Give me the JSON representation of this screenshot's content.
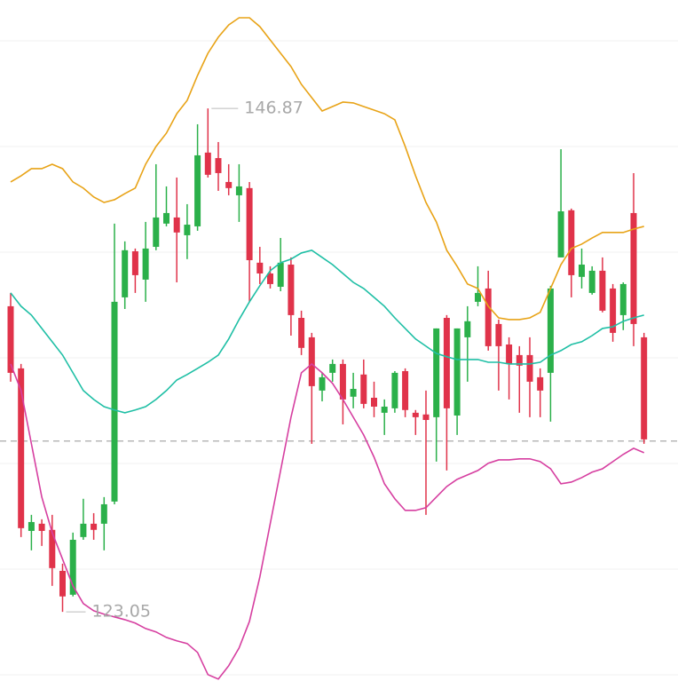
{
  "chart_data": {
    "type": "candlestick",
    "ylim": [
      119.4,
      152
    ],
    "up_color": "#e0334a",
    "down_color": "#2bb04a",
    "hline": 131.13,
    "open": [
      134.36,
      127.01,
      127.3,
      126.88,
      125.12,
      123.78,
      126.46,
      127.22,
      126.93,
      128.14,
      137.72,
      140.16,
      138.98,
      140.24,
      141.71,
      141.92,
      141.0,
      141.37,
      144.65,
      143.73,
      143.81,
      143.1,
      143.18,
      139.69,
      139.06,
      138.56,
      139.57,
      137.09,
      135.54,
      133.73,
      134.15,
      134.78,
      133.1,
      133.6,
      132.89,
      132.76,
      132.76,
      134.36,
      132.6,
      132.26,
      132.13,
      136.46,
      132.68,
      136.46,
      136.8,
      138.14,
      135.62,
      135.62,
      134.78,
      134.7,
      133.94,
      133.52,
      138.35,
      142.0,
      138.98,
      139.48,
      139.19,
      137.3,
      136.25,
      138.56,
      136.67,
      131.21
    ],
    "high": [
      138.14,
      134.78,
      127.64,
      127.43,
      127.64,
      125.33,
      126.8,
      128.4,
      127.72,
      128.48,
      141.42,
      140.58,
      140.24,
      141.5,
      144.23,
      143.18,
      143.6,
      142.34,
      146.12,
      146.87,
      145.28,
      144.23,
      144.23,
      143.39,
      140.32,
      139.4,
      140.74,
      139.82,
      137.3,
      136.25,
      134.36,
      134.99,
      134.99,
      134.36,
      134.99,
      133.94,
      133.1,
      134.44,
      134.57,
      132.6,
      133.52,
      136.46,
      137.09,
      136.46,
      137.51,
      139.4,
      139.19,
      136.88,
      136.04,
      135.62,
      136.04,
      134.57,
      138.48,
      144.94,
      142.13,
      140.24,
      139.4,
      139.82,
      138.56,
      138.64,
      143.81,
      136.25
    ],
    "low": [
      133.94,
      126.59,
      125.96,
      126.17,
      124.28,
      123.05,
      123.78,
      126.46,
      126.46,
      125.96,
      128.14,
      137.38,
      138.14,
      137.72,
      140.16,
      141.29,
      138.64,
      139.74,
      141.08,
      143.6,
      142.97,
      142.76,
      141.5,
      137.72,
      138.56,
      138.35,
      138.22,
      136.12,
      135.2,
      131.0,
      133.01,
      133.94,
      131.92,
      132.68,
      132.68,
      132.26,
      131.42,
      132.47,
      132.26,
      131.42,
      127.64,
      130.16,
      129.74,
      131.42,
      133.94,
      137.51,
      135.41,
      133.52,
      133.1,
      132.47,
      132.26,
      132.26,
      132.05,
      139.82,
      137.93,
      138.35,
      138.06,
      137.22,
      135.83,
      136.38,
      135.62,
      131.0
    ],
    "close": [
      137.51,
      134.57,
      126.88,
      127.22,
      126.93,
      124.99,
      123.86,
      126.59,
      127.22,
      127.22,
      128.27,
      137.93,
      140.11,
      138.77,
      140.32,
      141.42,
      141.71,
      140.87,
      141.29,
      144.78,
      144.52,
      143.39,
      142.76,
      143.1,
      139.57,
      139.06,
      138.43,
      139.48,
      136.96,
      136.04,
      133.52,
      134.36,
      134.78,
      133.23,
      134.28,
      133.18,
      132.47,
      132.68,
      134.44,
      132.47,
      132.39,
      132.26,
      136.96,
      132.34,
      136.04,
      137.72,
      138.35,
      136.67,
      135.7,
      135.2,
      135.2,
      134.15,
      134.36,
      139.82,
      142.05,
      138.9,
      138.14,
      139.19,
      138.35,
      137.09,
      141.92,
      136.04
    ],
    "series": [
      {
        "color": "#e8a317",
        "values": [
          143.39,
          143.68,
          144.02,
          144.02,
          144.23,
          144.02,
          143.39,
          143.1,
          142.68,
          142.42,
          142.55,
          142.84,
          143.1,
          144.23,
          145.07,
          145.7,
          146.62,
          147.25,
          148.43,
          149.48,
          150.24,
          150.82,
          151.16,
          151.16,
          150.74,
          150.11,
          149.48,
          148.85,
          148.01,
          147.38,
          146.75,
          146.96,
          147.17,
          147.13,
          146.96,
          146.79,
          146.62,
          146.33,
          145.07,
          143.68,
          142.42,
          141.5,
          140.16,
          139.4,
          138.56,
          138.35,
          137.51,
          136.96,
          136.88,
          136.88,
          136.96,
          137.22,
          138.35,
          139.48,
          140.24,
          140.45,
          140.74,
          141.0,
          141.0,
          141.0,
          141.16,
          141.29
        ]
      },
      {
        "color": "#1fbfa5",
        "values": [
          138.14,
          137.51,
          137.09,
          136.46,
          135.83,
          135.2,
          134.36,
          133.52,
          133.1,
          132.76,
          132.6,
          132.47,
          132.6,
          132.76,
          133.1,
          133.52,
          134.02,
          134.28,
          134.57,
          134.86,
          135.2,
          135.96,
          136.88,
          137.72,
          138.48,
          139.19,
          139.57,
          139.74,
          140.03,
          140.16,
          139.82,
          139.48,
          139.06,
          138.64,
          138.35,
          137.93,
          137.51,
          136.96,
          136.46,
          135.96,
          135.62,
          135.28,
          135.12,
          134.99,
          134.99,
          134.99,
          134.86,
          134.86,
          134.78,
          134.78,
          134.78,
          134.86,
          135.2,
          135.41,
          135.7,
          135.83,
          136.12,
          136.46,
          136.54,
          136.8,
          136.96,
          137.09
        ]
      },
      {
        "color": "#d63fa0",
        "values": [
          134.78,
          133.52,
          131.0,
          128.48,
          126.8,
          125.54,
          124.28,
          123.44,
          123.1,
          122.94,
          122.81,
          122.68,
          122.52,
          122.26,
          122.1,
          121.84,
          121.68,
          121.55,
          121.13,
          120.08,
          119.87,
          120.5,
          121.34,
          122.6,
          124.7,
          127.22,
          129.74,
          132.26,
          134.36,
          134.78,
          134.36,
          133.86,
          133.1,
          132.26,
          131.42,
          130.37,
          129.11,
          128.4,
          127.85,
          127.85,
          127.98,
          128.48,
          128.98,
          129.32,
          129.53,
          129.74,
          130.08,
          130.24,
          130.24,
          130.29,
          130.29,
          130.16,
          129.82,
          129.11,
          129.19,
          129.4,
          129.66,
          129.82,
          130.16,
          130.5,
          130.79,
          130.58
        ]
      }
    ]
  }
}
